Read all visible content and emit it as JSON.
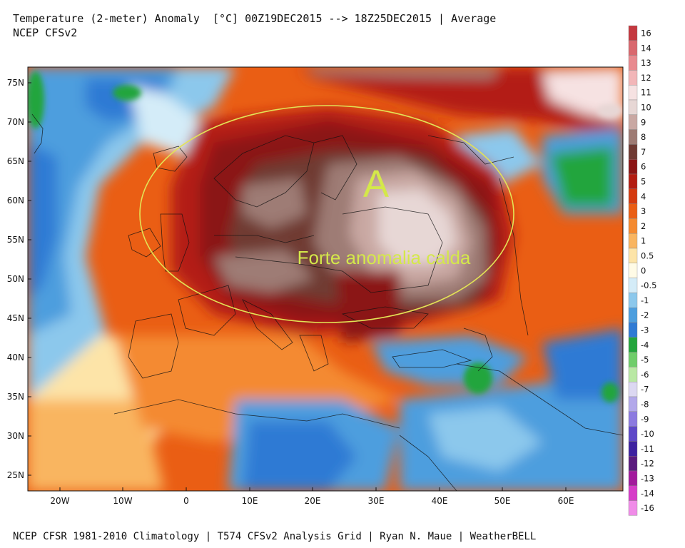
{
  "header": {
    "title_line1": "Temperature (2-meter) Anomaly  [°C] 00Z19DEC2015 --> 18Z25DEC2015 | Average",
    "title_line2": "NCEP CFSv2"
  },
  "footer": "NCEP CFSR 1981-2010 Climatology | T574 CFSv2 Analysis Grid | Ryan N. Maue | WeatherBELL",
  "map": {
    "lat_labels": [
      "75N",
      "70N",
      "65N",
      "60N",
      "55N",
      "50N",
      "45N",
      "40N",
      "35N",
      "30N",
      "25N"
    ],
    "lon_labels": [
      "20W",
      "10W",
      "0",
      "10E",
      "20E",
      "30E",
      "40E",
      "50E",
      "60E"
    ],
    "annotation_letter": "A",
    "annotation_text": "Forte anomalia calda"
  },
  "colorbar": {
    "labels": [
      "16",
      "14",
      "13",
      "12",
      "11",
      "10",
      "9",
      "8",
      "7",
      "6",
      "5",
      "4",
      "3",
      "2",
      "1",
      "0.5",
      "0",
      "-0.5",
      "-1",
      "-2",
      "-3",
      "-4",
      "-5",
      "-6",
      "-7",
      "-8",
      "-9",
      "-10",
      "-11",
      "-12",
      "-13",
      "-14",
      "-16"
    ],
    "colors": [
      "#c4383f",
      "#d9686e",
      "#e88a8f",
      "#f2b6b8",
      "#f6e2e2",
      "#e7d7d5",
      "#c9a8a3",
      "#9e7b74",
      "#6f3a33",
      "#8b1515",
      "#b31d12",
      "#d43a10",
      "#ea5e14",
      "#f48a30",
      "#f9b560",
      "#fde4a8",
      "#fffbe6",
      "#d4ecf8",
      "#8cc8ec",
      "#4d9ede",
      "#2f7ad4",
      "#23a53c",
      "#6fcd6a",
      "#b9e8a4",
      "#dcd8f2",
      "#b2a8ea",
      "#8c7ae0",
      "#5e48c8",
      "#3d21a0",
      "#5a1a7e",
      "#a21a9c",
      "#d63cc8",
      "#f08ce8"
    ]
  }
}
